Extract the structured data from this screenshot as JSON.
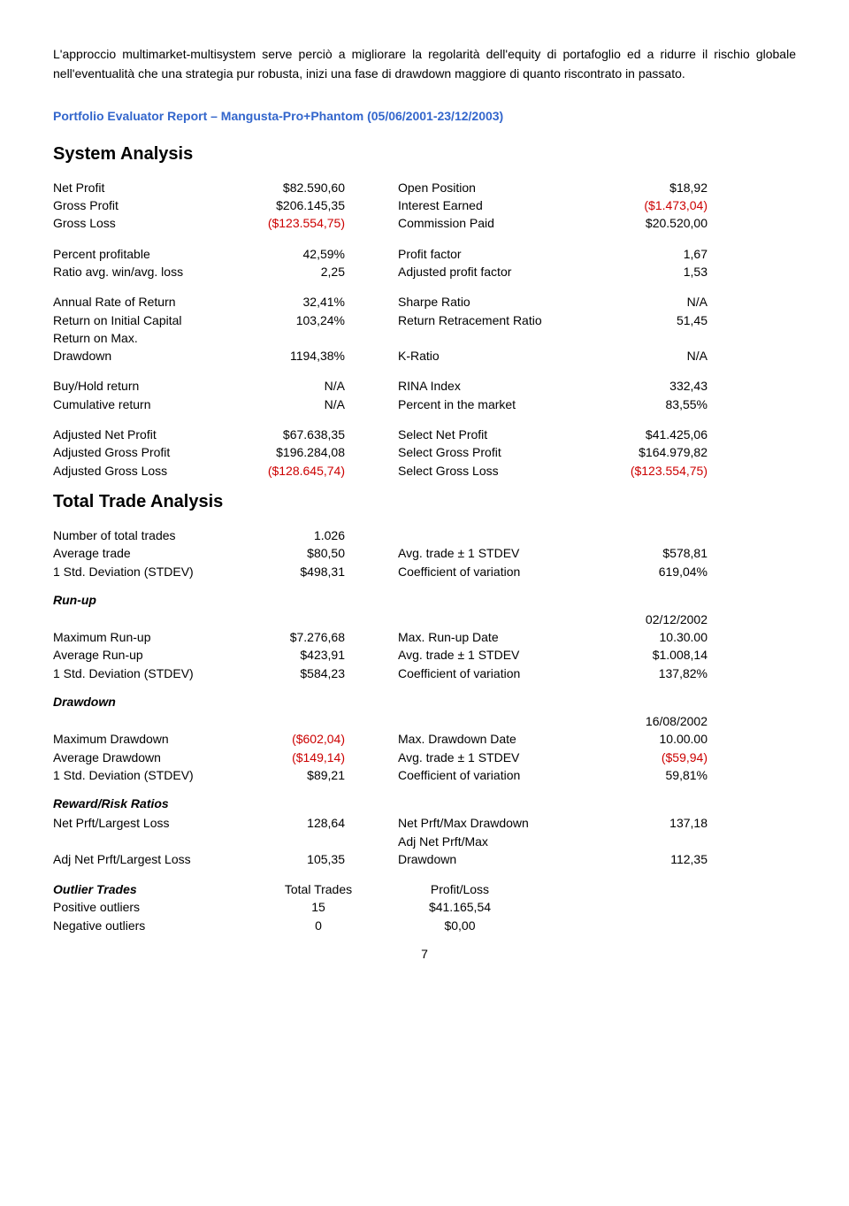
{
  "intro": "L'approccio multimarket-multisystem serve perciò a migliorare la regolarità dell'equity di portafoglio ed a ridurre il rischio globale nell'eventualità che una strategia pur robusta, inizi una fase di drawdown maggiore di quanto riscontrato in passato.",
  "report_title": "Portfolio Evaluator Report – Mangusta-Pro+Phantom (05/06/2001-23/12/2003)",
  "h_sys": "System Analysis",
  "h_tta": "Total Trade Analysis",
  "sys": {
    "r1": {
      "ll": "Net Profit",
      "lv": "$82.590,60",
      "rl": "Open Position",
      "rv": "$18,92"
    },
    "r2": {
      "ll": "Gross Profit",
      "lv": "$206.145,35",
      "rl": "Interest Earned",
      "rv": "($1.473,04)",
      "rneg": true
    },
    "r3": {
      "ll": "Gross Loss",
      "lv": "($123.554,75)",
      "lneg": true,
      "rl": "Commission Paid",
      "rv": "$20.520,00"
    },
    "r4": {
      "ll": "Percent profitable",
      "lv": "42,59%",
      "rl": "Profit factor",
      "rv": "1,67"
    },
    "r5": {
      "ll": "Ratio avg. win/avg. loss",
      "lv": "2,25",
      "rl": "Adjusted profit factor",
      "rv": "1,53"
    },
    "r6": {
      "ll": "Annual Rate of Return",
      "lv": "32,41%",
      "rl": "Sharpe Ratio",
      "rv": "N/A"
    },
    "r7": {
      "ll": "Return on Initial Capital",
      "lv": "103,24%",
      "rl": "Return Retracement Ratio",
      "rv": "51,45"
    },
    "r8a": {
      "ll": "Return on Max."
    },
    "r8b": {
      "ll": "Drawdown",
      "lv": "1194,38%",
      "rl": "K-Ratio",
      "rv": "N/A"
    },
    "r9": {
      "ll": "Buy/Hold return",
      "lv": "N/A",
      "rl": "RINA Index",
      "rv": "332,43"
    },
    "r10": {
      "ll": "Cumulative return",
      "lv": "N/A",
      "rl": "Percent in the market",
      "rv": "83,55%"
    },
    "r11": {
      "ll": "Adjusted Net Profit",
      "lv": "$67.638,35",
      "rl": "Select Net Profit",
      "rv": "$41.425,06"
    },
    "r12": {
      "ll": "Adjusted Gross Profit",
      "lv": "$196.284,08",
      "rl": "Select Gross Profit",
      "rv": "$164.979,82"
    },
    "r13": {
      "ll": "Adjusted Gross Loss",
      "lv": "($128.645,74)",
      "lneg": true,
      "rl": "Select Gross Loss",
      "rv": "($123.554,75)",
      "rneg": true
    }
  },
  "tta": {
    "r1": {
      "ll": "Number of total trades",
      "lv": "1.026"
    },
    "r2": {
      "ll": "Average trade",
      "lv": "$80,50",
      "rl": "Avg. trade ± 1 STDEV",
      "rv": "$578,81"
    },
    "r3": {
      "ll": "1 Std. Deviation (STDEV)",
      "lv": "$498,31",
      "rl": "Coefficient of variation",
      "rv": "619,04%"
    }
  },
  "runup_h": "Run-up",
  "runup": {
    "date": {
      "rv": "02/12/2002"
    },
    "r1": {
      "ll": "Maximum Run-up",
      "lv": "$7.276,68",
      "rl": "Max. Run-up Date",
      "rv": "10.30.00"
    },
    "r2": {
      "ll": "Average Run-up",
      "lv": "$423,91",
      "rl": "Avg. trade ± 1 STDEV",
      "rv": "$1.008,14"
    },
    "r3": {
      "ll": "1 Std. Deviation (STDEV)",
      "lv": "$584,23",
      "rl": "Coefficient of variation",
      "rv": "137,82%"
    }
  },
  "dd_h": "Drawdown",
  "dd": {
    "date": {
      "rv": "16/08/2002"
    },
    "r1": {
      "ll": "Maximum Drawdown",
      "lv": "($602,04)",
      "lneg": true,
      "rl": "Max. Drawdown Date",
      "rv": "10.00.00"
    },
    "r2": {
      "ll": "Average Drawdown",
      "lv": "($149,14)",
      "lneg": true,
      "rl": "Avg. trade ± 1 STDEV",
      "rv": "($59,94)",
      "rneg": true
    },
    "r3": {
      "ll": "1 Std. Deviation (STDEV)",
      "lv": "$89,21",
      "rl": "Coefficient of variation",
      "rv": "59,81%"
    }
  },
  "rr_h": "Reward/Risk Ratios",
  "rr": {
    "r1": {
      "ll": "Net Prft/Largest Loss",
      "lv": "128,64",
      "rl": "Net Prft/Max Drawdown",
      "rv": "137,18"
    },
    "r2a": {
      "rl": "Adj Net Prft/Max"
    },
    "r2b": {
      "ll": "Adj Net Prft/Largest Loss",
      "lv": "105,35",
      "rl": "Drawdown",
      "rv": "112,35"
    }
  },
  "out_h": "Outlier Trades",
  "out": {
    "head": {
      "mid": "Total Trades",
      "pl": "Profit/Loss"
    },
    "r1": {
      "ll": "Positive outliers",
      "mid": "15",
      "pl": "$41.165,54"
    },
    "r2": {
      "ll": "Negative outliers",
      "mid": "0",
      "pl": "$0,00"
    }
  },
  "pagenum": "7"
}
